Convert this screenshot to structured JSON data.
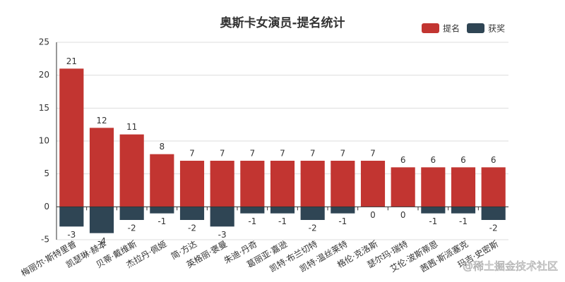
{
  "chart_data": {
    "type": "bar",
    "title": "奥斯卡女演员-提名统计",
    "categories": [
      "梅丽尔·斯特里普",
      "凯瑟琳·赫本",
      "贝蒂·戴维斯",
      "杰拉丹·佩姬",
      "简·方达",
      "英格丽·褒曼",
      "朱迪·丹奇",
      "葛丽亚·嘉逊",
      "凯特·布兰切特",
      "凯特·温丝莱特",
      "格伦·克洛斯",
      "瑟尔玛·瑞特",
      "艾伦·波斯蒂恩",
      "茜茜·斯派塞克",
      "玛吉·史密斯"
    ],
    "series": [
      {
        "name": "提名",
        "color": "#c23531",
        "values": [
          21,
          12,
          11,
          8,
          7,
          7,
          7,
          7,
          7,
          7,
          7,
          6,
          6,
          6,
          6
        ]
      },
      {
        "name": "获奖",
        "color": "#2f4554",
        "values": [
          -3,
          -4,
          -2,
          -1,
          -2,
          -3,
          -1,
          -1,
          -2,
          -1,
          0,
          0,
          -1,
          -1,
          -2
        ]
      }
    ],
    "ylim": [
      -5,
      25
    ],
    "yticks": [
      -5,
      0,
      5,
      10,
      15,
      20,
      25
    ],
    "grid": true,
    "legend": "top-right",
    "watermark": "@稀土掘金技术社区"
  }
}
